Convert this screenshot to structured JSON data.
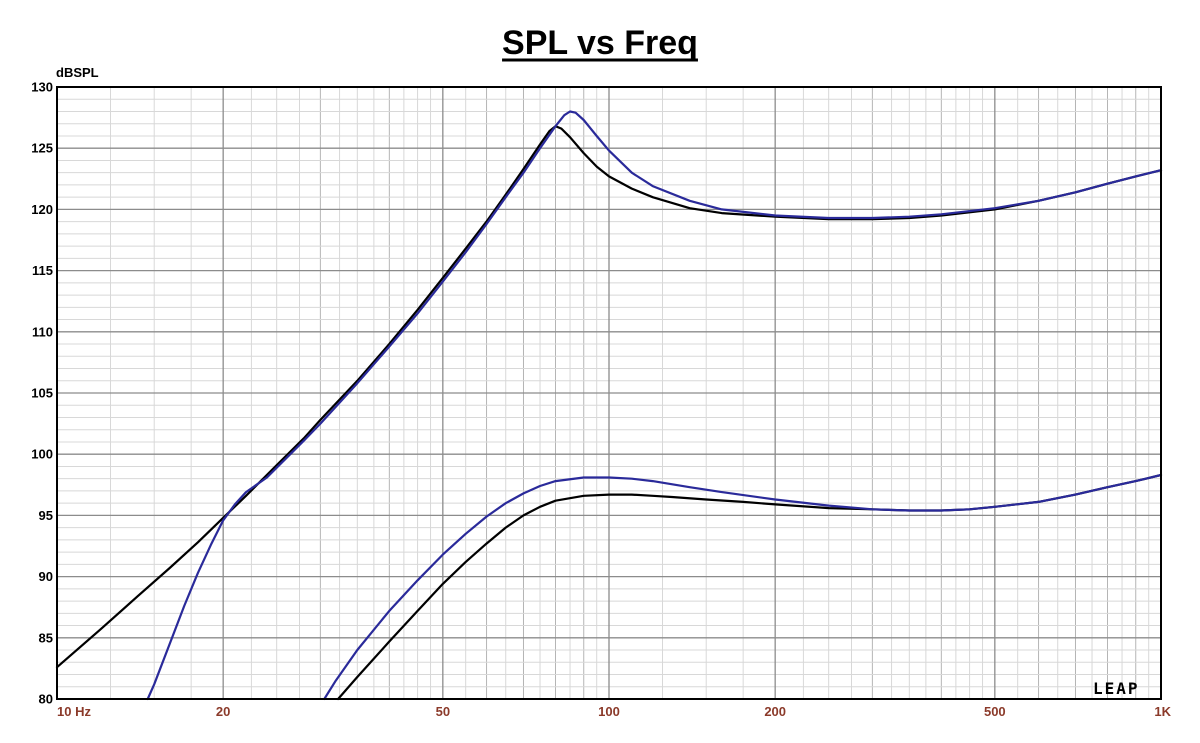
{
  "chart_data": {
    "type": "line",
    "title": "SPL vs Freq",
    "ylabel": "dBSPL",
    "xlabel": "",
    "xscale": "log",
    "xlim": [
      10,
      1000
    ],
    "ylim": [
      80,
      130
    ],
    "grid": true,
    "yticks": [
      "130",
      "125",
      "120",
      "115",
      "110",
      "105",
      "100",
      "95",
      "90",
      "85",
      "80"
    ],
    "xticks": [
      {
        "value": 10,
        "label": "10  Hz"
      },
      {
        "value": 20,
        "label": "20"
      },
      {
        "value": 50,
        "label": "50"
      },
      {
        "value": 100,
        "label": "100"
      },
      {
        "value": 200,
        "label": "200"
      },
      {
        "value": 500,
        "label": "500"
      },
      {
        "value": 1000,
        "label": "1K"
      }
    ],
    "logo_text": "LEAP",
    "series": [
      {
        "color": "#000000",
        "points": [
          [
            10,
            82.6
          ],
          [
            12,
            85.7
          ],
          [
            14,
            88.4
          ],
          [
            16,
            90.7
          ],
          [
            18,
            92.8
          ],
          [
            20,
            94.8
          ],
          [
            22,
            96.6
          ],
          [
            25,
            99.1
          ],
          [
            28,
            101.3
          ],
          [
            30,
            102.8
          ],
          [
            35,
            106.0
          ],
          [
            40,
            109.0
          ],
          [
            45,
            111.8
          ],
          [
            50,
            114.4
          ],
          [
            55,
            116.8
          ],
          [
            60,
            119.0
          ],
          [
            65,
            121.2
          ],
          [
            70,
            123.3
          ],
          [
            75,
            125.3
          ],
          [
            78,
            126.4
          ],
          [
            80,
            126.8
          ],
          [
            82,
            126.6
          ],
          [
            85,
            125.9
          ],
          [
            90,
            124.6
          ],
          [
            95,
            123.5
          ],
          [
            100,
            122.7
          ],
          [
            110,
            121.7
          ],
          [
            120,
            121.0
          ],
          [
            140,
            120.1
          ],
          [
            160,
            119.7
          ],
          [
            200,
            119.4
          ],
          [
            250,
            119.2
          ],
          [
            300,
            119.2
          ],
          [
            350,
            119.3
          ],
          [
            400,
            119.5
          ],
          [
            500,
            120.0
          ],
          [
            600,
            120.7
          ],
          [
            700,
            121.4
          ],
          [
            800,
            122.1
          ],
          [
            900,
            122.7
          ],
          [
            1000,
            123.2
          ]
        ]
      },
      {
        "color": "#2a2a9a",
        "points": [
          [
            14.6,
            80.0
          ],
          [
            15,
            81.2
          ],
          [
            16,
            84.5
          ],
          [
            17,
            87.6
          ],
          [
            18,
            90.3
          ],
          [
            19,
            92.6
          ],
          [
            20,
            94.6
          ],
          [
            21,
            95.9
          ],
          [
            22,
            96.9
          ],
          [
            24,
            98.1
          ],
          [
            25,
            98.9
          ],
          [
            28,
            101.1
          ],
          [
            30,
            102.5
          ],
          [
            35,
            105.8
          ],
          [
            40,
            108.8
          ],
          [
            45,
            111.5
          ],
          [
            50,
            114.1
          ],
          [
            55,
            116.5
          ],
          [
            60,
            118.8
          ],
          [
            65,
            121.0
          ],
          [
            70,
            123.0
          ],
          [
            75,
            125.0
          ],
          [
            80,
            126.8
          ],
          [
            83,
            127.7
          ],
          [
            85,
            128.0
          ],
          [
            87,
            127.9
          ],
          [
            90,
            127.3
          ],
          [
            95,
            126.0
          ],
          [
            100,
            124.8
          ],
          [
            110,
            123.0
          ],
          [
            120,
            121.9
          ],
          [
            140,
            120.7
          ],
          [
            160,
            120.0
          ],
          [
            200,
            119.5
          ],
          [
            250,
            119.3
          ],
          [
            300,
            119.3
          ],
          [
            350,
            119.4
          ],
          [
            400,
            119.6
          ],
          [
            500,
            120.1
          ],
          [
            600,
            120.7
          ],
          [
            700,
            121.4
          ],
          [
            800,
            122.1
          ],
          [
            900,
            122.7
          ],
          [
            1000,
            123.2
          ]
        ]
      },
      {
        "color": "#000000",
        "points": [
          [
            32.3,
            80.0
          ],
          [
            35,
            81.8
          ],
          [
            40,
            84.7
          ],
          [
            45,
            87.2
          ],
          [
            50,
            89.4
          ],
          [
            55,
            91.2
          ],
          [
            60,
            92.7
          ],
          [
            65,
            94.0
          ],
          [
            70,
            95.0
          ],
          [
            75,
            95.7
          ],
          [
            80,
            96.2
          ],
          [
            90,
            96.6
          ],
          [
            100,
            96.7
          ],
          [
            110,
            96.7
          ],
          [
            120,
            96.6
          ],
          [
            130,
            96.5
          ],
          [
            150,
            96.3
          ],
          [
            175,
            96.1
          ],
          [
            200,
            95.9
          ],
          [
            250,
            95.6
          ],
          [
            300,
            95.5
          ],
          [
            350,
            95.4
          ],
          [
            400,
            95.4
          ],
          [
            450,
            95.5
          ],
          [
            500,
            95.7
          ],
          [
            600,
            96.1
          ],
          [
            700,
            96.7
          ],
          [
            800,
            97.3
          ],
          [
            900,
            97.8
          ],
          [
            1000,
            98.3
          ]
        ]
      },
      {
        "color": "#2a2a9a",
        "points": [
          [
            30.5,
            80.0
          ],
          [
            32,
            81.5
          ],
          [
            35,
            84.0
          ],
          [
            40,
            87.2
          ],
          [
            45,
            89.7
          ],
          [
            50,
            91.8
          ],
          [
            55,
            93.5
          ],
          [
            60,
            94.9
          ],
          [
            65,
            96.0
          ],
          [
            70,
            96.8
          ],
          [
            75,
            97.4
          ],
          [
            80,
            97.8
          ],
          [
            90,
            98.1
          ],
          [
            100,
            98.1
          ],
          [
            110,
            98.0
          ],
          [
            120,
            97.8
          ],
          [
            140,
            97.3
          ],
          [
            160,
            96.9
          ],
          [
            200,
            96.3
          ],
          [
            250,
            95.8
          ],
          [
            300,
            95.5
          ],
          [
            350,
            95.4
          ],
          [
            400,
            95.4
          ],
          [
            450,
            95.5
          ],
          [
            500,
            95.7
          ],
          [
            600,
            96.1
          ],
          [
            700,
            96.7
          ],
          [
            800,
            97.3
          ],
          [
            900,
            97.8
          ],
          [
            1000,
            98.3
          ]
        ]
      }
    ]
  }
}
